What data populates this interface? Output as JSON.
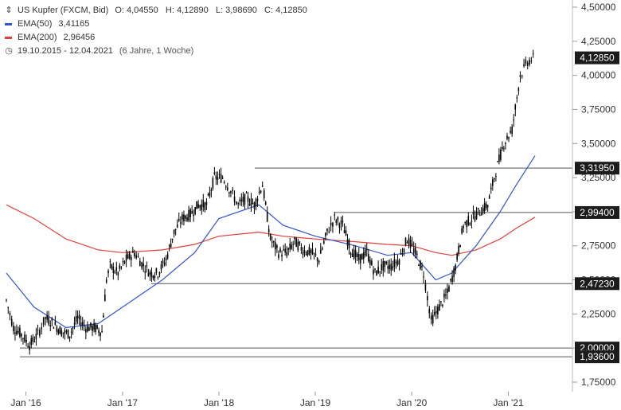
{
  "legend": {
    "instrument": "US Kupfer (FXCM, Bid)",
    "ohlc": "O: 4,04550   H: 4,12890   L: 3,98690   C: 4,12850",
    "ema50_label": "EMA(50)",
    "ema50_value": "3,41165",
    "ema200_label": "EMA(200)",
    "ema200_value": "2,96456",
    "range": "19.10.2015 - 12.04.2021",
    "range_note": "(6 Jahre, 1 Woche)"
  },
  "colors": {
    "price": "#000000",
    "ema50": "#3355cc",
    "ema200": "#e0403a",
    "levels": "#555555",
    "axis_text": "#333333",
    "badge_bg": "#1c1c1c",
    "badge_text": "#ffffff"
  },
  "icons": {
    "price_marker": "up-down-arrows-icon",
    "range_marker": "clock-icon"
  },
  "chart_data": {
    "type": "line",
    "title": "US Kupfer (FXCM, Bid)",
    "xlabel": "",
    "ylabel": "",
    "ylim": [
      1.7,
      4.55
    ],
    "xlim": [
      "2015-10-19",
      "2021-04-12"
    ],
    "y_ticks": [
      "1,75000",
      "2,00000",
      "2,25000",
      "2,50000",
      "2,75000",
      "3,00000",
      "3,25000",
      "3,50000",
      "3,75000",
      "4,00000",
      "4,25000",
      "4,50000"
    ],
    "x_ticks": [
      {
        "date": "2016-01-01",
        "label": "Jan '16"
      },
      {
        "date": "2017-01-01",
        "label": "Jan '17"
      },
      {
        "date": "2018-01-01",
        "label": "Jan '18"
      },
      {
        "date": "2019-01-01",
        "label": "Jan '19"
      },
      {
        "date": "2020-01-01",
        "label": "Jan '20"
      },
      {
        "date": "2021-01-01",
        "label": "Jan '21"
      }
    ],
    "grid": false,
    "series": [
      {
        "name": "US Kupfer (FXCM, Bid)",
        "style": "candles",
        "x": [
          "2015-10-19",
          "2015-11-15",
          "2015-12-15",
          "2016-01-15",
          "2016-02-15",
          "2016-03-15",
          "2016-04-15",
          "2016-05-15",
          "2016-06-15",
          "2016-07-15",
          "2016-08-15",
          "2016-09-15",
          "2016-10-15",
          "2016-11-01",
          "2016-11-15",
          "2016-12-15",
          "2017-01-15",
          "2017-02-15",
          "2017-03-15",
          "2017-04-15",
          "2017-05-15",
          "2017-06-15",
          "2017-07-15",
          "2017-08-15",
          "2017-09-15",
          "2017-10-15",
          "2017-11-15",
          "2017-12-15",
          "2018-01-15",
          "2018-02-15",
          "2018-03-15",
          "2018-04-15",
          "2018-05-15",
          "2018-06-15",
          "2018-07-15",
          "2018-08-15",
          "2018-09-15",
          "2018-10-15",
          "2018-11-15",
          "2018-12-15",
          "2019-01-15",
          "2019-02-15",
          "2019-03-15",
          "2019-04-15",
          "2019-05-15",
          "2019-06-15",
          "2019-07-15",
          "2019-08-15",
          "2019-09-15",
          "2019-10-15",
          "2019-11-15",
          "2019-12-15",
          "2020-01-15",
          "2020-02-15",
          "2020-03-15",
          "2020-04-15",
          "2020-05-15",
          "2020-06-15",
          "2020-07-15",
          "2020-08-15",
          "2020-09-15",
          "2020-10-15",
          "2020-11-15",
          "2020-12-15",
          "2021-01-15",
          "2021-02-15",
          "2021-03-15",
          "2021-04-12"
        ],
        "y": [
          2.35,
          2.15,
          2.1,
          2.02,
          2.1,
          2.22,
          2.18,
          2.12,
          2.1,
          2.22,
          2.15,
          2.15,
          2.12,
          2.5,
          2.6,
          2.55,
          2.65,
          2.7,
          2.62,
          2.55,
          2.55,
          2.65,
          2.85,
          2.95,
          2.98,
          3.05,
          3.05,
          3.25,
          3.25,
          3.15,
          3.05,
          3.1,
          3.05,
          3.2,
          2.8,
          2.7,
          2.7,
          2.78,
          2.72,
          2.7,
          2.65,
          2.85,
          2.95,
          2.9,
          2.72,
          2.65,
          2.7,
          2.55,
          2.6,
          2.6,
          2.65,
          2.8,
          2.7,
          2.55,
          2.2,
          2.3,
          2.4,
          2.6,
          2.9,
          2.95,
          3.0,
          3.05,
          3.3,
          3.5,
          3.6,
          4.0,
          4.1,
          4.13
        ]
      },
      {
        "name": "EMA(50)",
        "x": [
          "2015-10-19",
          "2016-02-01",
          "2016-06-01",
          "2016-10-01",
          "2017-01-01",
          "2017-06-01",
          "2017-10-01",
          "2018-01-01",
          "2018-06-01",
          "2018-09-01",
          "2019-01-01",
          "2019-06-01",
          "2019-10-01",
          "2020-01-01",
          "2020-04-01",
          "2020-06-01",
          "2020-09-01",
          "2020-12-01",
          "2021-02-01",
          "2021-04-12"
        ],
        "y": [
          2.55,
          2.3,
          2.15,
          2.18,
          2.3,
          2.5,
          2.7,
          2.95,
          3.05,
          2.9,
          2.82,
          2.75,
          2.68,
          2.7,
          2.5,
          2.55,
          2.75,
          3.0,
          3.2,
          3.41
        ]
      },
      {
        "name": "EMA(200)",
        "x": [
          "2015-10-19",
          "2016-02-01",
          "2016-06-01",
          "2016-10-01",
          "2017-01-01",
          "2017-06-01",
          "2017-10-01",
          "2018-01-01",
          "2018-06-01",
          "2018-09-01",
          "2019-01-01",
          "2019-06-01",
          "2019-10-01",
          "2020-01-01",
          "2020-04-01",
          "2020-06-01",
          "2020-09-01",
          "2020-12-01",
          "2021-02-01",
          "2021-04-12"
        ],
        "y": [
          3.05,
          2.95,
          2.8,
          2.72,
          2.7,
          2.72,
          2.76,
          2.82,
          2.85,
          2.82,
          2.8,
          2.78,
          2.76,
          2.75,
          2.7,
          2.68,
          2.72,
          2.8,
          2.88,
          2.96
        ]
      }
    ],
    "horizontal_levels": [
      {
        "value": 3.3195,
        "label": "3,31950"
      },
      {
        "value": 2.994,
        "label": "2,99400"
      },
      {
        "value": 2.4723,
        "label": "2,47230"
      },
      {
        "value": 2.0,
        "label": "2,00000"
      },
      {
        "value": 1.936,
        "label": "1,93600"
      }
    ],
    "last_price": {
      "value": 4.1285,
      "label": "4,12850"
    }
  }
}
